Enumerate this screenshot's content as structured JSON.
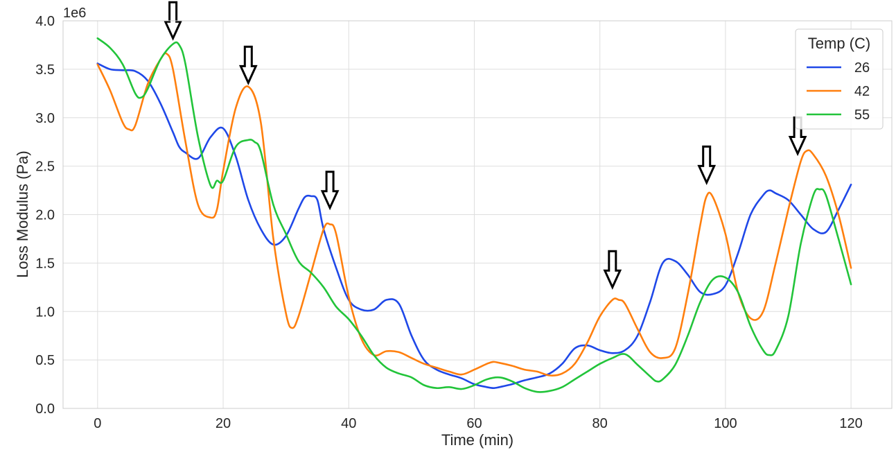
{
  "chart_data": {
    "type": "line",
    "title": "",
    "xlabel": "Time (min)",
    "ylabel": "Loss Modulus (Pa)",
    "y_scale_label": "1e6",
    "xlim": [
      -5.5,
      126.5
    ],
    "ylim": [
      0,
      4.0
    ],
    "x_ticks": [
      0,
      20,
      40,
      60,
      80,
      100,
      120
    ],
    "x_tick_labels": [
      "0",
      "20",
      "40",
      "60",
      "80",
      "100",
      "120"
    ],
    "y_ticks": [
      0,
      0.5,
      1.0,
      1.5,
      2.0,
      2.5,
      3.0,
      3.5,
      4.0
    ],
    "y_tick_labels": [
      "0.0",
      "0.5",
      "1.0",
      "1.5",
      "2.0",
      "2.5",
      "3.0",
      "3.5",
      "4.0"
    ],
    "grid": true,
    "legend": {
      "title": "Temp (C)",
      "placement": "top-right"
    },
    "series": [
      {
        "name": "26",
        "color": "#1f48e8",
        "x": [
          0,
          2,
          4,
          6,
          8,
          10,
          12,
          13,
          14,
          16,
          18,
          20,
          22,
          24,
          26,
          28,
          30,
          32,
          33,
          34,
          35,
          36,
          38,
          40,
          42,
          44,
          46,
          48,
          50,
          52,
          54,
          56,
          58,
          60,
          62,
          63,
          64,
          66,
          68,
          70,
          72,
          74,
          76,
          78,
          80,
          82,
          84,
          86,
          88,
          90,
          92,
          94,
          96,
          98,
          100,
          102,
          104,
          106,
          107,
          108,
          110,
          112,
          114,
          116,
          118,
          120
        ],
        "values": [
          3.56,
          3.5,
          3.49,
          3.48,
          3.38,
          3.15,
          2.85,
          2.7,
          2.64,
          2.58,
          2.8,
          2.89,
          2.6,
          2.15,
          1.85,
          1.69,
          1.78,
          2.06,
          2.18,
          2.19,
          2.15,
          1.85,
          1.45,
          1.12,
          1.02,
          1.02,
          1.12,
          1.08,
          0.75,
          0.5,
          0.4,
          0.35,
          0.31,
          0.25,
          0.22,
          0.21,
          0.22,
          0.25,
          0.29,
          0.32,
          0.36,
          0.46,
          0.62,
          0.65,
          0.6,
          0.57,
          0.6,
          0.75,
          1.1,
          1.5,
          1.52,
          1.38,
          1.2,
          1.18,
          1.27,
          1.6,
          2.0,
          2.2,
          2.25,
          2.22,
          2.15,
          2.0,
          1.85,
          1.82,
          2.05,
          2.31
        ]
      },
      {
        "name": "42",
        "color": "#ff7f0e",
        "x": [
          0,
          2,
          4,
          5,
          6,
          8,
          10,
          11,
          12,
          14,
          16,
          18,
          19,
          20,
          22,
          24,
          26,
          28,
          30,
          31,
          32,
          34,
          36,
          37,
          38,
          40,
          42,
          44,
          46,
          48,
          50,
          52,
          54,
          56,
          58,
          60,
          62,
          63,
          64,
          66,
          68,
          70,
          72,
          74,
          76,
          78,
          80,
          82,
          83,
          84,
          86,
          88,
          90,
          92,
          94,
          96,
          97,
          98,
          100,
          102,
          104,
          106,
          108,
          110,
          112,
          113,
          114,
          116,
          118,
          120
        ],
        "values": [
          3.55,
          3.28,
          2.95,
          2.88,
          2.92,
          3.35,
          3.6,
          3.66,
          3.5,
          2.75,
          2.1,
          1.97,
          2.05,
          2.45,
          3.1,
          3.32,
          2.95,
          1.75,
          0.98,
          0.83,
          0.95,
          1.4,
          1.85,
          1.9,
          1.8,
          1.15,
          0.72,
          0.55,
          0.59,
          0.58,
          0.52,
          0.46,
          0.42,
          0.38,
          0.35,
          0.4,
          0.46,
          0.48,
          0.47,
          0.44,
          0.4,
          0.38,
          0.34,
          0.36,
          0.46,
          0.68,
          0.95,
          1.12,
          1.12,
          1.08,
          0.82,
          0.58,
          0.52,
          0.62,
          1.18,
          1.9,
          2.19,
          2.18,
          1.8,
          1.2,
          0.93,
          1.0,
          1.5,
          2.05,
          2.55,
          2.66,
          2.62,
          2.4,
          2.0,
          1.45
        ]
      },
      {
        "name": "55",
        "color": "#22c43a",
        "x": [
          0,
          2,
          4,
          6,
          7,
          8,
          10,
          12,
          13,
          14,
          16,
          18,
          19,
          20,
          22,
          24,
          25,
          26,
          28,
          30,
          32,
          34,
          36,
          38,
          40,
          42,
          44,
          46,
          48,
          50,
          52,
          54,
          56,
          58,
          60,
          62,
          64,
          66,
          68,
          70,
          72,
          74,
          76,
          78,
          80,
          82,
          84,
          86,
          88,
          89,
          90,
          92,
          94,
          96,
          98,
          100,
          102,
          104,
          106,
          107,
          108,
          110,
          112,
          114,
          115,
          116,
          118,
          120
        ],
        "values": [
          3.82,
          3.72,
          3.55,
          3.25,
          3.21,
          3.3,
          3.6,
          3.76,
          3.75,
          3.55,
          2.8,
          2.3,
          2.35,
          2.35,
          2.7,
          2.77,
          2.75,
          2.65,
          2.1,
          1.8,
          1.52,
          1.4,
          1.25,
          1.05,
          0.92,
          0.75,
          0.55,
          0.42,
          0.36,
          0.32,
          0.24,
          0.21,
          0.22,
          0.2,
          0.24,
          0.3,
          0.32,
          0.28,
          0.21,
          0.17,
          0.18,
          0.22,
          0.3,
          0.38,
          0.46,
          0.52,
          0.56,
          0.45,
          0.33,
          0.28,
          0.3,
          0.45,
          0.75,
          1.1,
          1.33,
          1.35,
          1.2,
          0.85,
          0.6,
          0.55,
          0.6,
          0.95,
          1.7,
          2.2,
          2.26,
          2.2,
          1.75,
          1.28
        ]
      }
    ],
    "annotations": [
      {
        "type": "down-arrow",
        "x": 12,
        "y_tip": 3.82
      },
      {
        "type": "down-arrow",
        "x": 24,
        "y_tip": 3.36
      },
      {
        "type": "down-arrow",
        "x": 37,
        "y_tip": 2.07
      },
      {
        "type": "down-arrow",
        "x": 82,
        "y_tip": 1.25
      },
      {
        "type": "down-arrow",
        "x": 97,
        "y_tip": 2.33
      },
      {
        "type": "down-arrow",
        "x": 111.5,
        "y_tip": 2.63
      }
    ]
  }
}
